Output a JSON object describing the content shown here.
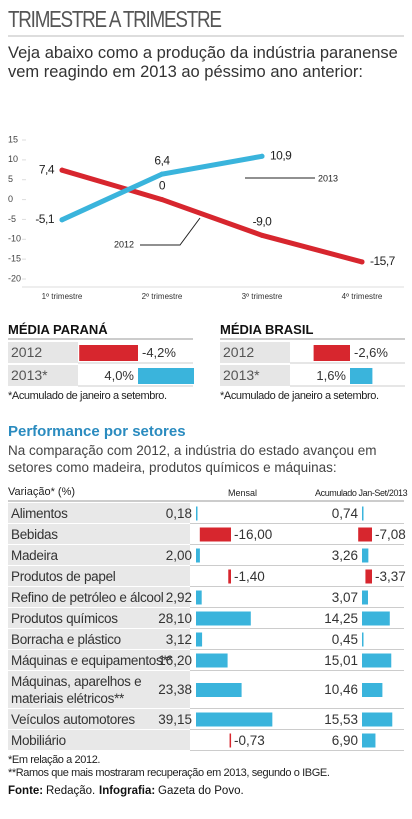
{
  "title": "TRIMESTRE A TRIMESTRE",
  "subtitle": "Veja abaixo como a produção da indústria paranense vem reagindo em 2013 ao péssimo ano anterior:",
  "chart_data": {
    "type": "line",
    "categories": [
      "1º trimestre",
      "2º trimestre",
      "3º trimestre",
      "4º trimestre"
    ],
    "series": [
      {
        "name": "2012",
        "color": "#d7262e",
        "values": [
          7.4,
          0,
          -9.0,
          -15.7
        ],
        "value_labels": [
          "7,4",
          "0",
          "-9,0",
          "-15,7"
        ]
      },
      {
        "name": "2013",
        "color": "#3ab4dc",
        "values": [
          -5.1,
          6.4,
          10.9,
          null
        ],
        "value_labels": [
          "-5,1",
          "6,4",
          "10,9",
          null
        ]
      }
    ],
    "ylim": [
      -20,
      15
    ],
    "yticks": [
      15,
      10,
      5,
      0,
      -5,
      -10,
      -15,
      -20
    ]
  },
  "colors": {
    "positive": "#3ab4dc",
    "negative": "#d7262e"
  },
  "averages": [
    {
      "title": "MÉDIA PARANÁ",
      "rows": [
        {
          "label": "2012",
          "value": -4.2,
          "value_label": "-4,2%"
        },
        {
          "label": "2013*",
          "value": 4.0,
          "value_label": "4,0%"
        }
      ],
      "note": "*Acumulado de janeiro a setembro."
    },
    {
      "title": "MÉDIA BRASIL",
      "rows": [
        {
          "label": "2012",
          "value": -2.6,
          "value_label": "-2,6%"
        },
        {
          "label": "2013*",
          "value": 1.6,
          "value_label": "1,6%"
        }
      ],
      "note": "*Acumulado de janeiro a setembro."
    }
  ],
  "sectors": {
    "title": "Performance por setores",
    "description": "Na comparação com 2012, a indústria do estado avançou em setores como madeira, produtos químicos e máquinas:",
    "headers": [
      "Variação* (%)",
      "Mensal",
      "Acumulado Jan-Set/2013"
    ],
    "rows": [
      {
        "name": "Alimentos",
        "values": [
          0.18,
          0.74
        ],
        "value_labels": [
          "0,18",
          "0,74"
        ]
      },
      {
        "name": "Bebidas",
        "values": [
          -16.0,
          -7.08
        ],
        "value_labels": [
          "-16,00",
          "-7,08"
        ]
      },
      {
        "name": "Madeira",
        "values": [
          2.0,
          3.26
        ],
        "value_labels": [
          "2,00",
          "3,26"
        ]
      },
      {
        "name": "Produtos de papel",
        "values": [
          -1.4,
          -3.37
        ],
        "value_labels": [
          "-1,40",
          "-3,37"
        ]
      },
      {
        "name": "Refino de petróleo e álcool",
        "values": [
          2.92,
          3.07
        ],
        "value_labels": [
          "2,92",
          "3,07"
        ]
      },
      {
        "name": "Produtos químicos",
        "values": [
          28.1,
          14.25
        ],
        "value_labels": [
          "28,10",
          "14,25"
        ]
      },
      {
        "name": "Borracha e plástico",
        "values": [
          3.12,
          0.45
        ],
        "value_labels": [
          "3,12",
          "0,45"
        ]
      },
      {
        "name": "Máquinas e equipamentos**",
        "values": [
          16.2,
          15.01
        ],
        "value_labels": [
          "16,20",
          "15,01"
        ]
      },
      {
        "name": "Máquinas, aparelhos e materiais elétricos**",
        "values": [
          23.38,
          10.46
        ],
        "value_labels": [
          "23,38",
          "10,46"
        ]
      },
      {
        "name": "Veículos automotores",
        "values": [
          39.15,
          15.53
        ],
        "value_labels": [
          "39,15",
          "15,53"
        ]
      },
      {
        "name": "Mobiliário",
        "values": [
          -0.73,
          6.9
        ],
        "value_labels": [
          "-0,73",
          "6,90"
        ]
      }
    ],
    "notes": [
      "*Em relação a 2012.",
      "**Ramos que mais mostraram recuperação em 2013, segundo o IBGE."
    ]
  },
  "source": [
    {
      "label": "Fonte:",
      "text": "Redação."
    },
    {
      "label": "Infografia:",
      "text": "Gazeta do Povo."
    }
  ]
}
